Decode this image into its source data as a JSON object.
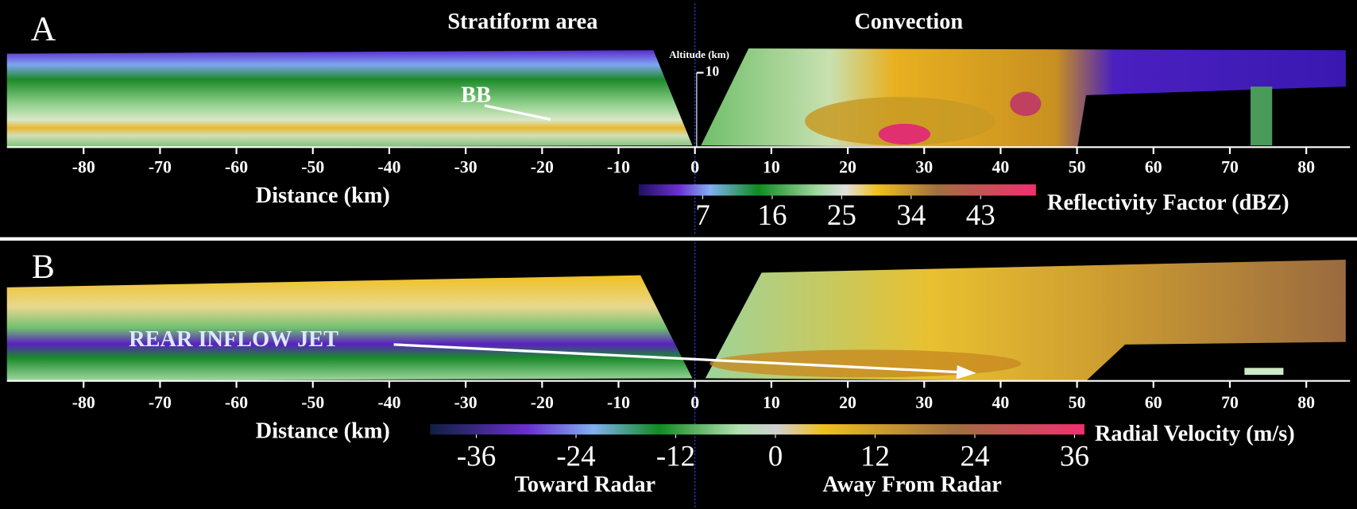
{
  "panel_a": {
    "letter": "A",
    "left_title": "Stratiform area",
    "right_title": "Convection",
    "altitude_label": "Altitude (km)",
    "altitude_tick": 10,
    "annotation": "BB",
    "xticks": [
      -80,
      -70,
      -60,
      -50,
      -40,
      -30,
      -20,
      -10,
      0,
      10,
      20,
      30,
      40,
      50,
      60,
      70,
      80
    ],
    "x_label": "Distance (km)",
    "colorbar": {
      "ticks": [
        7,
        16,
        25,
        34,
        43
      ],
      "label": "Reflectivity Factor (dBZ)"
    }
  },
  "panel_b": {
    "letter": "B",
    "annotation": "REAR INFLOW JET",
    "xticks": [
      -80,
      -70,
      -60,
      -50,
      -40,
      -30,
      -20,
      -10,
      0,
      10,
      20,
      30,
      40,
      50,
      60,
      70,
      80
    ],
    "x_label": "Distance (km)",
    "colorbar": {
      "ticks": [
        -36,
        -24,
        -12,
        0,
        12,
        24,
        36
      ],
      "label": "Radial Velocity (m/s)",
      "left_caption": "Toward Radar",
      "right_caption": "Away From Radar"
    }
  }
}
